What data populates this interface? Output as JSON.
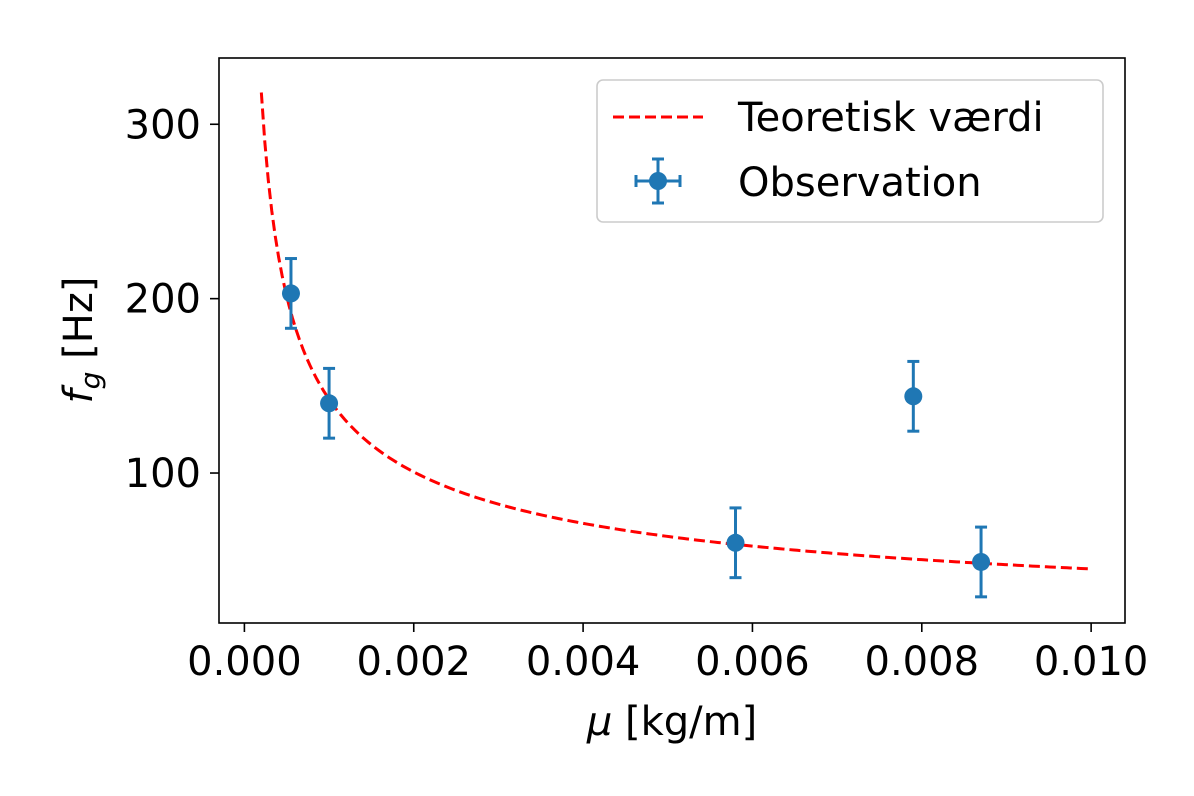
{
  "chart_data": {
    "type": "scatter",
    "xlabel": {
      "symbol": "μ",
      "unit": " [kg/m]"
    },
    "ylabel": {
      "symbol": "f",
      "sub": "g",
      "unit": " [Hz]"
    },
    "xlim": [
      -0.0003,
      0.0104
    ],
    "ylim": [
      14,
      338
    ],
    "x_ticks": [
      0.0,
      0.002,
      0.004,
      0.006,
      0.008,
      0.01
    ],
    "x_tick_labels": [
      "0.000",
      "0.002",
      "0.004",
      "0.006",
      "0.008",
      "0.010"
    ],
    "y_ticks": [
      100,
      200,
      300
    ],
    "y_tick_labels": [
      "100",
      "200",
      "300"
    ],
    "grid": false,
    "legend_position": "top-right",
    "series": [
      {
        "name": "Teoretisk værdi",
        "kind": "line",
        "style": "dashed",
        "color": "#ff0000",
        "formula": "f = 4.5 / sqrt(mu)",
        "x_range": [
          0.0002,
          0.01
        ],
        "samples": 240
      },
      {
        "name": "Observation",
        "kind": "errorbar",
        "color": "#1f77b4",
        "x": [
          0.00055,
          0.001,
          0.0058,
          0.0079,
          0.0087
        ],
        "y": [
          203,
          140,
          60,
          144,
          49
        ],
        "yerr": [
          20,
          20,
          20,
          20,
          20
        ]
      }
    ]
  }
}
